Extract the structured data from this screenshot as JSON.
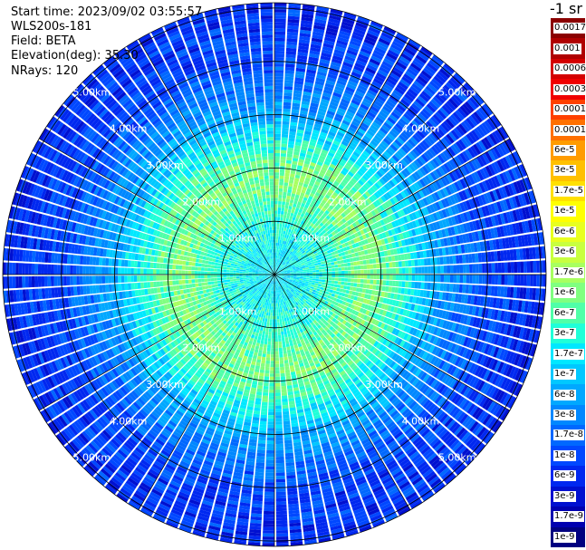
{
  "info": {
    "start_time": "Start time: 2023/09/02 03:55:57",
    "instrument": "WLS200s-181",
    "field": "Field: BETA",
    "elevation": "Elevation(deg): 35.30",
    "nrays": "NRays: 120"
  },
  "colorbar": {
    "unit": "-1 sr",
    "labels": [
      "0.0017",
      "0.001",
      "0.0006",
      "0.0003",
      "0.00017",
      "0.0001",
      "6e-5",
      "3e-5",
      "1.7e-5",
      "1e-5",
      "6e-6",
      "3e-6",
      "1.7e-6",
      "1e-6",
      "6e-7",
      "3e-7",
      "1.7e-7",
      "1e-7",
      "6e-8",
      "3e-8",
      "1.7e-8",
      "1e-8",
      "6e-9",
      "3e-9",
      "1.7e-9",
      "1e-9"
    ],
    "colors": [
      "#8b0000",
      "#b00000",
      "#d40000",
      "#f00000",
      "#ff4000",
      "#ff7000",
      "#ff9c00",
      "#ffc000",
      "#ffe000",
      "#ffff00",
      "#e8ff20",
      "#c8ff40",
      "#a8ff60",
      "#80ff80",
      "#50ffa8",
      "#20ffd8",
      "#00e8ff",
      "#00c8ff",
      "#00a8ff",
      "#0088ff",
      "#0068ff",
      "#0048ff",
      "#0028f0",
      "#0010d0",
      "#0000b0",
      "#000080"
    ]
  },
  "chart_data": {
    "type": "heatmap",
    "projection": "polar PPI",
    "field": "BETA",
    "rays": 120,
    "range_unit": "km",
    "range_rings_km": [
      1,
      2,
      3,
      4,
      5
    ],
    "max_range_km": 5.1,
    "range_ring_labels": [
      "1.00km",
      "2.00km",
      "3.00km",
      "4.00km",
      "5.00km"
    ],
    "values_by_range_km": [
      {
        "range": 0.3,
        "beta": 1.7e-07
      },
      {
        "range": 1.0,
        "beta": 3e-07
      },
      {
        "range": 1.7,
        "beta": 1e-06
      },
      {
        "range": 2.2,
        "beta": 6e-07
      },
      {
        "range": 3.0,
        "beta": 6e-08
      },
      {
        "range": 4.0,
        "beta": 1e-08
      },
      {
        "range": 5.0,
        "beta": 6e-09
      }
    ]
  }
}
